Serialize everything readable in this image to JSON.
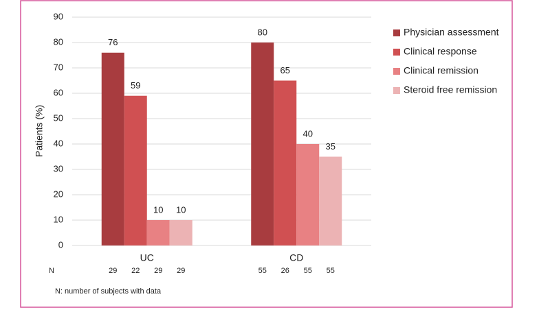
{
  "chart_data": {
    "type": "bar",
    "y_label": "Patients (%)",
    "categories": [
      "UC",
      "CD"
    ],
    "series": [
      {
        "name": "Physician assessment",
        "color": "#a83c3f",
        "values": [
          76,
          80
        ],
        "n": [
          29,
          55
        ]
      },
      {
        "name": "Clinical response",
        "color": "#d05052",
        "values": [
          59,
          65
        ],
        "n": [
          22,
          26
        ]
      },
      {
        "name": "Clinical remission",
        "color": "#e88183",
        "values": [
          10,
          40
        ],
        "n": [
          29,
          55
        ]
      },
      {
        "name": "Steroid free remission",
        "color": "#ecb3b4",
        "values": [
          10,
          35
        ],
        "n": [
          29,
          55
        ]
      }
    ],
    "n_label": "N",
    "footnote": "N: number of subjects with data",
    "ylim": [
      0,
      90
    ],
    "yticks": [
      0,
      10,
      20,
      30,
      40,
      50,
      60,
      70,
      80,
      90
    ],
    "grid": true,
    "legend": "right"
  }
}
